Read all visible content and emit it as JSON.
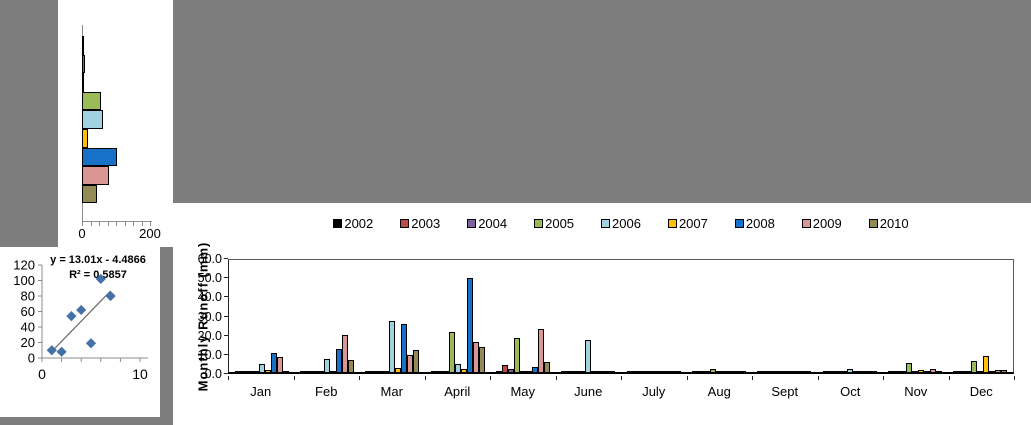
{
  "canvas": {
    "background": "#7d7d7d",
    "panel_background": "#ffffff"
  },
  "chart_data": [
    {
      "id": "annual-runoff-totals",
      "type": "bar",
      "orientation": "horizontal",
      "categories": [
        "2002",
        "2003",
        "2004",
        "2005",
        "2006",
        "2007",
        "2008",
        "2009",
        "2010"
      ],
      "values": [
        2,
        10,
        5,
        55,
        63,
        17,
        104,
        80,
        43
      ],
      "colors": [
        "#000000",
        "#be4b48",
        "#7d60a0",
        "#9bbb59",
        "#a2d2e2",
        "#ffc000",
        "#1771c6",
        "#d99694",
        "#948a54"
      ],
      "xlim": [
        0,
        200
      ],
      "xtick_labels": [
        "0",
        "200"
      ],
      "xticks_count": 9,
      "grid": false,
      "legend": "none"
    },
    {
      "id": "runoff-regression-scatter",
      "type": "scatter",
      "points": [
        [
          1,
          10
        ],
        [
          2,
          8
        ],
        [
          3,
          54
        ],
        [
          4,
          62
        ],
        [
          5,
          19
        ],
        [
          6,
          102
        ],
        [
          7,
          80
        ]
      ],
      "trendline": {
        "slope": 13.01,
        "intercept": -4.4866,
        "x_start": 1,
        "x_end": 7
      },
      "equation_label": "y = 13.01x - 4.4866",
      "r2_label": "R² = 0.5857",
      "xlim": [
        0,
        10
      ],
      "ylim": [
        0,
        120
      ],
      "ytick_labels": [
        "0",
        "20",
        "40",
        "60",
        "80",
        "100",
        "120"
      ],
      "xtick_labels": [
        "0",
        "10"
      ],
      "xticks_count": 6,
      "marker_color": "#4472a8",
      "trendline_color": "#6b6b6b",
      "grid": false,
      "legend": "none"
    },
    {
      "id": "monthly-runoff",
      "type": "bar",
      "grouped": true,
      "categories": [
        "Jan",
        "Feb",
        "Mar",
        "April",
        "May",
        "June",
        "July",
        "Aug",
        "Sept",
        "Oct",
        "Nov",
        "Dec"
      ],
      "series": [
        {
          "name": "2002",
          "color": "#000000",
          "values": [
            0.3,
            0.3,
            0.3,
            0.5,
            0.3,
            0.2,
            0.2,
            0.2,
            0.2,
            0.2,
            0.3,
            0.3
          ]
        },
        {
          "name": "2003",
          "color": "#be4b48",
          "values": [
            0.2,
            0.2,
            0.2,
            0.3,
            3.8,
            0.2,
            0.2,
            0.2,
            0.2,
            0.2,
            0.2,
            0.2
          ]
        },
        {
          "name": "2004",
          "color": "#7d60a0",
          "values": [
            0.1,
            0.1,
            0.1,
            0.2,
            1.5,
            0.1,
            0.1,
            0.1,
            0.1,
            0.1,
            0.1,
            0.1
          ]
        },
        {
          "name": "2005",
          "color": "#9bbb59",
          "values": [
            0.2,
            0.2,
            0.2,
            20.8,
            17.6,
            0.2,
            0.2,
            1.5,
            0.2,
            0.2,
            4.6,
            5.5
          ]
        },
        {
          "name": "2006",
          "color": "#a2d2e2",
          "values": [
            4.2,
            6.6,
            26.5,
            4.0,
            0.5,
            16.8,
            0.2,
            0.2,
            0.2,
            1.5,
            0.2,
            0.2
          ]
        },
        {
          "name": "2007",
          "color": "#ffc000",
          "values": [
            1.2,
            0.2,
            2.2,
            1.5,
            0.2,
            0.2,
            0.2,
            0.2,
            0.2,
            0.2,
            1.0,
            8.4
          ]
        },
        {
          "name": "2008",
          "color": "#1771c6",
          "values": [
            9.7,
            12.0,
            25.3,
            49.0,
            2.6,
            0.4,
            0.2,
            0.2,
            0.2,
            0.2,
            0.2,
            0.4
          ]
        },
        {
          "name": "2009",
          "color": "#d99694",
          "values": [
            7.6,
            19.5,
            8.8,
            15.5,
            22.2,
            0.2,
            0.2,
            0.2,
            0.2,
            0.2,
            1.8,
            1.0
          ]
        },
        {
          "name": "2010",
          "color": "#948a54",
          "values": [
            0.5,
            6.4,
            11.3,
            12.9,
            5.3,
            0.5,
            0.2,
            0.2,
            0.2,
            0.2,
            0.6,
            1.3
          ]
        }
      ],
      "ylabel": "Monthly Runoff (mm)",
      "ylim": [
        0,
        60
      ],
      "ytick_step": 10,
      "ytick_labels": [
        "0.0",
        "10.0",
        "20.0",
        "30.0",
        "40.0",
        "50.0",
        "60.0"
      ],
      "legend_position": "top",
      "grid": false
    }
  ]
}
